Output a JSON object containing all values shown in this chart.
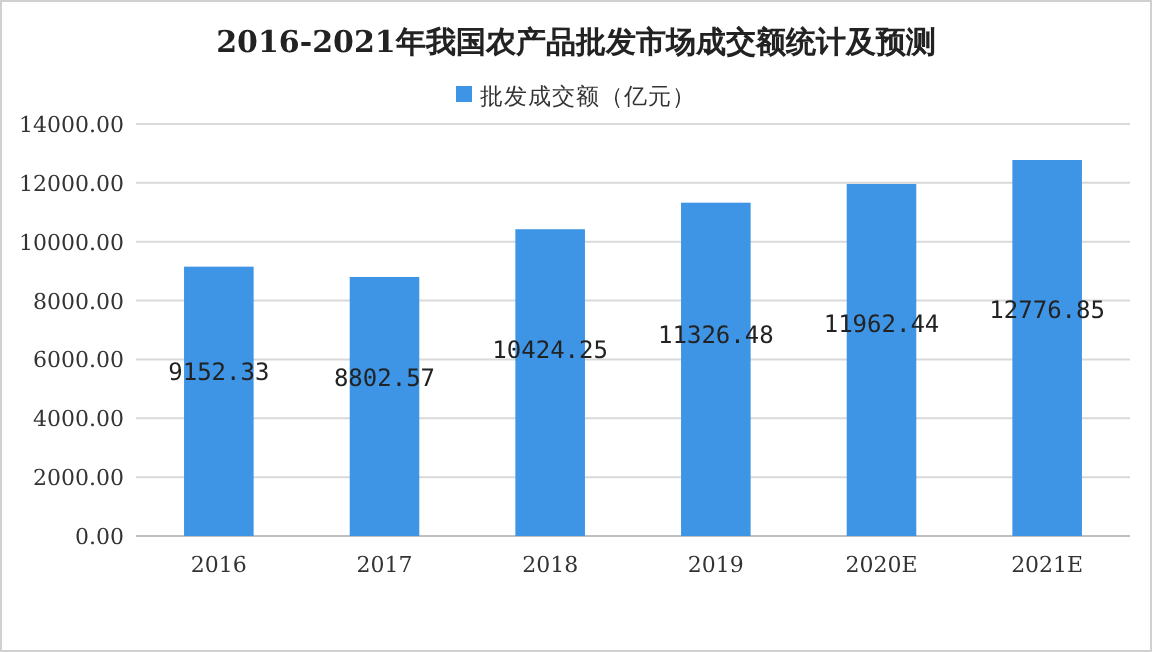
{
  "chart_data": {
    "type": "bar",
    "title": "2016-2021年我国农产品批发市场成交额统计及预测",
    "categories": [
      "2016",
      "2017",
      "2018",
      "2019",
      "2020E",
      "2021E"
    ],
    "series": [
      {
        "name": "批发成交额（亿元）",
        "color": "#3e95e6",
        "values": [
          9152.33,
          8802.57,
          10424.25,
          11326.48,
          11962.44,
          12776.85
        ]
      }
    ],
    "ylim": [
      0,
      14000
    ],
    "yticks": [
      {
        "value": 0,
        "label": "0.00"
      },
      {
        "value": 2000,
        "label": "2000.00"
      },
      {
        "value": 4000,
        "label": "4000.00"
      },
      {
        "value": 6000,
        "label": "6000.00"
      },
      {
        "value": 8000,
        "label": "8000.00"
      },
      {
        "value": 10000,
        "label": "10000.00"
      },
      {
        "value": 12000,
        "label": "12000.00"
      },
      {
        "value": 14000,
        "label": "14000.00"
      }
    ],
    "grid": "y",
    "legend": "top",
    "data_labels": true
  }
}
